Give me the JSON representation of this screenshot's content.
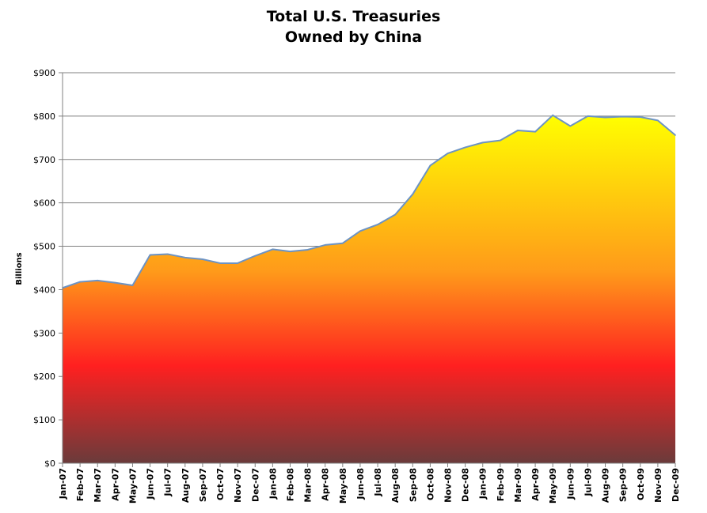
{
  "chart_data": {
    "type": "area",
    "title_line1": "Total U.S. Treasuries",
    "title_line2": "Owned by China",
    "xlabel": "",
    "ylabel": "Billions",
    "ylim": [
      0,
      900
    ],
    "ytick_labels": [
      "$0",
      "$100",
      "$200",
      "$300",
      "$400",
      "$500",
      "$600",
      "$700",
      "$800",
      "$900"
    ],
    "ytick_values": [
      0,
      100,
      200,
      300,
      400,
      500,
      600,
      700,
      800,
      900
    ],
    "grid": true,
    "legend": "none",
    "categories": [
      "Jan-07",
      "Feb-07",
      "Mar-07",
      "Apr-07",
      "May-07",
      "Jun-07",
      "Jul-07",
      "Aug-07",
      "Sep-07",
      "Oct-07",
      "Nov-07",
      "Dec-07",
      "Jan-08",
      "Feb-08",
      "Mar-08",
      "Apr-08",
      "May-08",
      "Jun-08",
      "Jul-08",
      "Aug-08",
      "Sep-08",
      "Oct-08",
      "Nov-08",
      "Dec-08",
      "Jan-09",
      "Feb-09",
      "Mar-09",
      "Apr-09",
      "May-09",
      "Jun-09",
      "Jul-09",
      "Aug-09",
      "Sep-09",
      "Oct-09",
      "Nov-09",
      "Dec-09"
    ],
    "values": [
      404,
      418,
      421,
      416,
      410,
      480,
      482,
      474,
      470,
      461,
      461,
      478,
      493,
      488,
      492,
      503,
      507,
      535,
      550,
      573,
      620,
      686,
      714,
      728,
      739,
      744,
      767,
      764,
      802,
      777,
      800,
      797,
      799,
      798,
      790,
      756
    ],
    "colors": {
      "line": "#6c93c4",
      "fill_top": "#ffff00",
      "fill_mid_upper": "#ff9a1a",
      "fill_mid": "#ff2020",
      "fill_bottom": "#6a3b3b",
      "grid": "#808080",
      "axis": "#808080"
    }
  }
}
